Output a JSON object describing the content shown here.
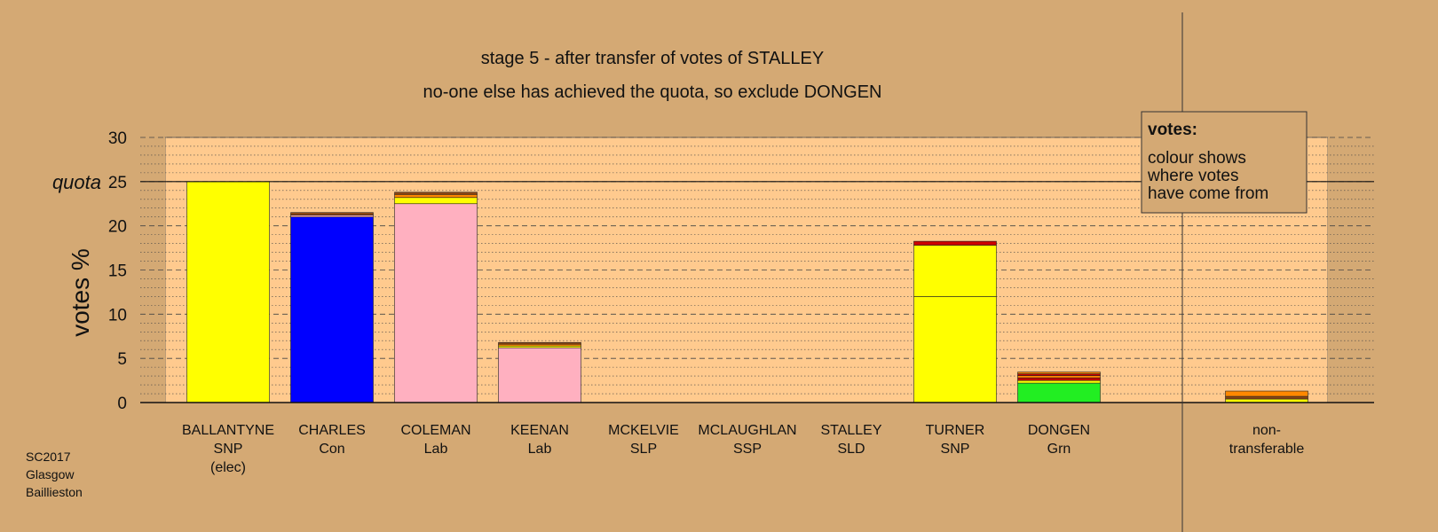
{
  "chart_data": {
    "type": "bar",
    "stacked": true,
    "title": "stage 5 - after transfer of votes of STALLEY",
    "subtitle": "no-one else has achieved the quota, so exclude DONGEN",
    "ylabel": "votes %",
    "ylim": [
      0,
      30
    ],
    "yticks": [
      "0",
      "5",
      "10",
      "15",
      "20",
      "25",
      "30"
    ],
    "quota_value": 25,
    "quota_label": "quota",
    "grid": true,
    "legend": {
      "title": "votes:",
      "lines": [
        "colour shows",
        "where votes",
        "have come from"
      ],
      "placement": "top-right"
    },
    "footer": [
      "SC2017",
      "Glasgow",
      "Baillieston"
    ],
    "colors": {
      "snp": "#ffff00",
      "con": "#0000ff",
      "lab": "#ffb0c0",
      "grn": "#22ee22",
      "red": "#cc0000",
      "orange": "#ff8800",
      "brown": "#8b4513",
      "plot_bg": "#ffca8e",
      "page_bg": "#d4a974"
    },
    "categories": [
      {
        "name": "BALLANTYNE",
        "party": "SNP",
        "note": "(elec)",
        "segments": [
          {
            "source": "SNP",
            "value": 25.0,
            "color": "#ffff00"
          }
        ]
      },
      {
        "name": "CHARLES",
        "party": "Con",
        "segments": [
          {
            "source": "Con",
            "value": 21.0,
            "color": "#0000ff"
          },
          {
            "source": "Lab",
            "value": 0.2,
            "color": "#ffb0c0"
          },
          {
            "source": "other",
            "value": 0.3,
            "color": "#8b4513"
          }
        ]
      },
      {
        "name": "COLEMAN",
        "party": "Lab",
        "segments": [
          {
            "source": "Lab",
            "value": 22.5,
            "color": "#ffb0c0"
          },
          {
            "source": "SNP",
            "value": 0.7,
            "color": "#ffff00"
          },
          {
            "source": "other",
            "value": 0.35,
            "color": "#ff8800"
          },
          {
            "source": "other",
            "value": 0.25,
            "color": "#8b4513"
          }
        ]
      },
      {
        "name": "KEENAN",
        "party": "Lab",
        "segments": [
          {
            "source": "Lab",
            "value": 6.2,
            "color": "#ffb0c0"
          },
          {
            "source": "SNP",
            "value": 0.2,
            "color": "#ffff00"
          },
          {
            "source": "other",
            "value": 0.2,
            "color": "#ff8800"
          },
          {
            "source": "other",
            "value": 0.2,
            "color": "#8b4513"
          }
        ]
      },
      {
        "name": "MCKELVIE",
        "party": "SLP",
        "segments": []
      },
      {
        "name": "MCLAUGHLAN",
        "party": "SSP",
        "segments": []
      },
      {
        "name": "STALLEY",
        "party": "SLD",
        "segments": []
      },
      {
        "name": "TURNER",
        "party": "SNP",
        "segments": [
          {
            "source": "SNP",
            "value": 12.0,
            "color": "#ffff00"
          },
          {
            "source": "SNP",
            "value": 5.8,
            "color": "#ffff00"
          },
          {
            "source": "other",
            "value": 0.45,
            "color": "#cc0000"
          }
        ]
      },
      {
        "name": "DONGEN",
        "party": "Grn",
        "segments": [
          {
            "source": "Grn",
            "value": 2.2,
            "color": "#22ee22"
          },
          {
            "source": "SNP",
            "value": 0.3,
            "color": "#ffff00"
          },
          {
            "source": "other",
            "value": 0.3,
            "color": "#cc0000"
          },
          {
            "source": "other",
            "value": 0.25,
            "color": "#ff8800"
          },
          {
            "source": "other",
            "value": 0.2,
            "color": "#cc0000"
          },
          {
            "source": "other",
            "value": 0.2,
            "color": "#ff8800"
          }
        ]
      },
      {
        "name": "non-",
        "party": "transferable",
        "segments": [
          {
            "source": "SNP",
            "value": 0.4,
            "color": "#ffff00"
          },
          {
            "source": "other",
            "value": 0.3,
            "color": "#8b4513"
          },
          {
            "source": "other",
            "value": 0.6,
            "color": "#ff8800"
          }
        ]
      }
    ]
  }
}
